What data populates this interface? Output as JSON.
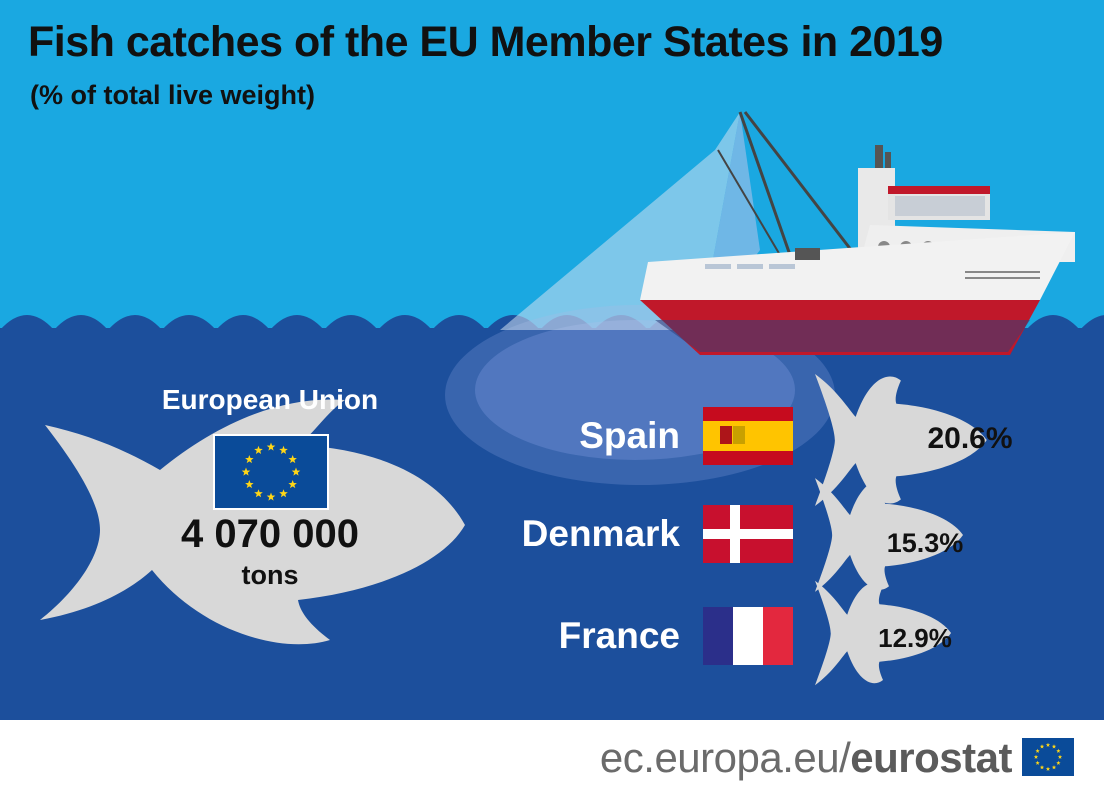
{
  "title": "Fish catches of the EU Member States in 2019",
  "subtitle": "(% of total live weight)",
  "eu": {
    "label": "European Union",
    "value": "4 070 000",
    "unit": "tons"
  },
  "countries": [
    {
      "name": "Spain",
      "share": "20.6%",
      "value": 20.6
    },
    {
      "name": "Denmark",
      "share": "15.3%",
      "value": 15.3
    },
    {
      "name": "France",
      "share": "12.9%",
      "value": 12.9
    }
  ],
  "footer": {
    "url_prefix": "ec.europa.eu/",
    "url_brand": "eurostat"
  },
  "colors": {
    "sky": "#1aa8e1",
    "sea": "#1c4f9c",
    "fish": "#d8d8d8",
    "hull_red": "#c0182a",
    "eu_blue": "#0a4b99",
    "eu_yellow": "#ffd617"
  }
}
